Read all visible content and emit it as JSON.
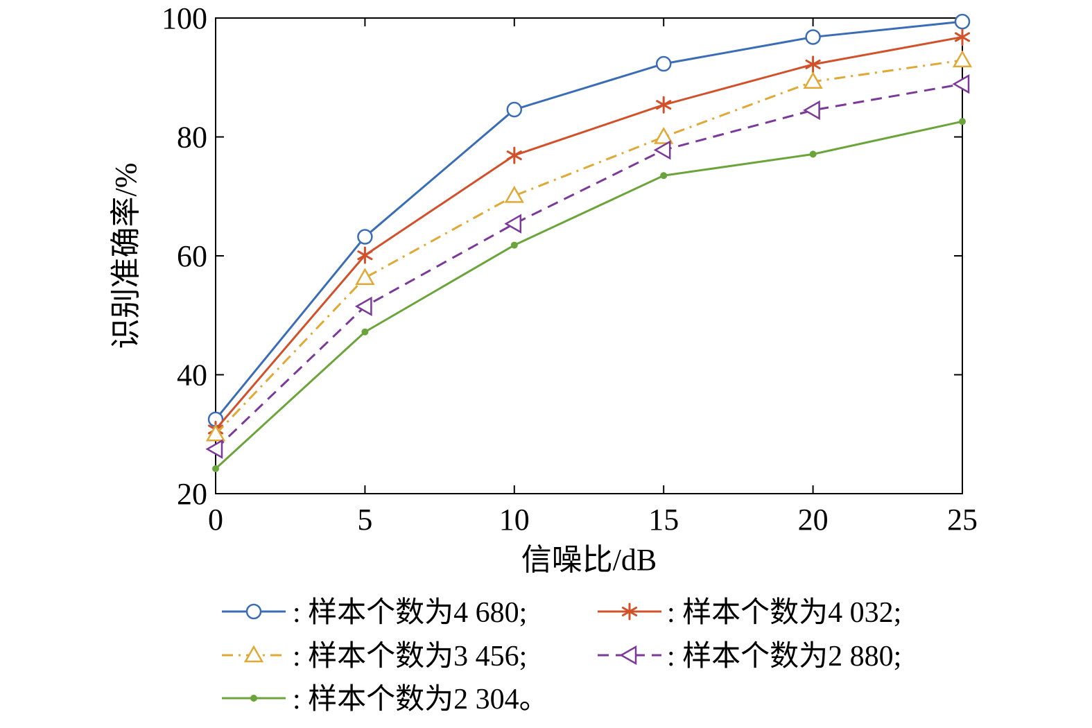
{
  "chart_data": {
    "type": "line",
    "title": "",
    "xlabel": "信噪比/dB",
    "ylabel": "识别准确率/%",
    "xlim": [
      0,
      25
    ],
    "ylim": [
      20,
      100
    ],
    "xticks": [
      0,
      5,
      10,
      15,
      20,
      25
    ],
    "yticks": [
      20,
      40,
      60,
      80,
      100
    ],
    "xtick_labels": [
      "0",
      "5",
      "10",
      "15",
      "20",
      "25"
    ],
    "ytick_labels": [
      "20",
      "40",
      "60",
      "80",
      "100"
    ],
    "grid": false,
    "x": [
      0,
      5,
      10,
      15,
      20,
      25
    ],
    "series": [
      {
        "name": ": 样本个数为4 680;",
        "values": [
          32.5,
          63.2,
          84.6,
          92.3,
          96.8,
          99.4
        ],
        "color": "#3A6DB5",
        "marker": "circle",
        "dash": "solid"
      },
      {
        "name": ": 样本个数为4 032;",
        "values": [
          30.8,
          60.1,
          76.9,
          85.4,
          92.2,
          96.8
        ],
        "color": "#D0512A",
        "marker": "asterisk",
        "dash": "solid"
      },
      {
        "name": ": 样本个数为3 456;",
        "values": [
          30.0,
          56.3,
          70.1,
          80.0,
          89.3,
          92.9
        ],
        "color": "#E0A835",
        "marker": "triangle-up",
        "dash": "dashdot"
      },
      {
        "name": ": 样本个数为2 880;",
        "values": [
          27.5,
          51.5,
          65.4,
          77.8,
          84.5,
          88.9
        ],
        "color": "#7B3A9A",
        "marker": "triangle-left",
        "dash": "dashed"
      },
      {
        "name": ": 样本个数为2 304。",
        "values": [
          24.2,
          47.2,
          61.8,
          73.5,
          77.1,
          82.6
        ],
        "color": "#6BA43A",
        "marker": "dot",
        "dash": "solid"
      }
    ]
  }
}
